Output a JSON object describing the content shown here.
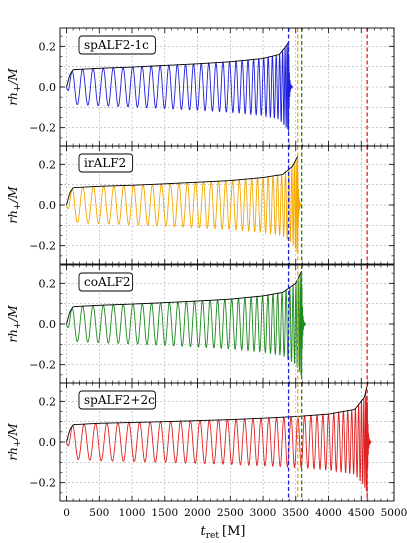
{
  "chart_data": {
    "type": "line",
    "shared_x": {
      "label_main": "t",
      "label_sub": "ret",
      "label_unit": "[M]",
      "range": [
        -100,
        5000
      ],
      "ticks": [
        "0",
        "500",
        "1000",
        "1500",
        "2000",
        "2500",
        "3000",
        "3500",
        "4000",
        "4500",
        "5000"
      ],
      "tick_values": [
        0,
        500,
        1000,
        1500,
        2000,
        2500,
        3000,
        3500,
        4000,
        4500,
        5000
      ]
    },
    "ylabel_main": "rh",
    "ylabel_sub": "+",
    "ylabel_unit": "/M",
    "ylim": [
      -0.29,
      0.29
    ],
    "y_ticks": [
      "0.2",
      "0.0",
      "−0.2"
    ],
    "y_tick_values": [
      0.2,
      0.0,
      -0.2
    ],
    "grid": true,
    "merger_lines": [
      {
        "t": 3390,
        "color": "#1f1fdd"
      },
      {
        "t": 3530,
        "color": "#f5a800"
      },
      {
        "t": 3590,
        "color": "#1e8a1e"
      },
      {
        "t": 4590,
        "color": "#e02020"
      }
    ],
    "panels": [
      {
        "label": "spALF2-1c",
        "color": "#1f1fdd",
        "t_merger": 3390,
        "envelope": {
          "t": [
            0,
            50,
            100,
            500,
            1000,
            1500,
            2000,
            2500,
            3000,
            3250,
            3350,
            3390
          ],
          "amp": [
            0.0,
            0.06,
            0.085,
            0.092,
            0.098,
            0.106,
            0.114,
            0.124,
            0.14,
            0.16,
            0.2,
            0.22
          ]
        },
        "oscillation": {
          "min_t": 0,
          "min_value": -0.1,
          "n_cycles": 33
        }
      },
      {
        "label": "irALF2",
        "color": "#f5a800",
        "t_merger": 3530,
        "envelope": {
          "t": [
            0,
            50,
            100,
            500,
            1000,
            1500,
            2000,
            2500,
            3000,
            3300,
            3450,
            3530
          ],
          "amp": [
            0.0,
            0.06,
            0.085,
            0.092,
            0.097,
            0.104,
            0.112,
            0.12,
            0.135,
            0.15,
            0.19,
            0.24
          ]
        },
        "oscillation": {
          "min_t": 0,
          "min_value": -0.1,
          "n_cycles": 34
        }
      },
      {
        "label": "coALF2",
        "color": "#1e8a1e",
        "t_merger": 3590,
        "envelope": {
          "t": [
            0,
            50,
            100,
            500,
            1000,
            1500,
            2000,
            2500,
            3000,
            3300,
            3500,
            3590
          ],
          "amp": [
            0.0,
            0.06,
            0.085,
            0.092,
            0.098,
            0.105,
            0.113,
            0.122,
            0.138,
            0.155,
            0.2,
            0.26
          ]
        },
        "oscillation": {
          "min_t": 0,
          "min_value": -0.1,
          "n_cycles": 35
        }
      },
      {
        "label": "spALF2+2c",
        "color": "#e02020",
        "t_merger": 4590,
        "envelope": {
          "t": [
            0,
            50,
            100,
            500,
            1000,
            1500,
            2000,
            2500,
            3000,
            3500,
            4000,
            4400,
            4550,
            4590
          ],
          "amp": [
            0.0,
            0.06,
            0.085,
            0.092,
            0.096,
            0.1,
            0.105,
            0.11,
            0.117,
            0.125,
            0.137,
            0.16,
            0.22,
            0.28
          ]
        },
        "oscillation": {
          "min_t": 0,
          "min_value": -0.1,
          "n_cycles": 41
        }
      }
    ]
  }
}
